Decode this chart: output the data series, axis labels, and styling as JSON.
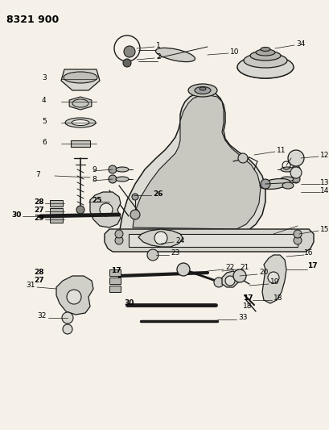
{
  "title": "8321 900",
  "bg_color": "#f5f0e8",
  "line_color": "#1a1a1a",
  "title_color": "#000000",
  "title_fontsize": 9,
  "label_fontsize": 6.5,
  "bold_labels": [
    17,
    25,
    26,
    28,
    27,
    29,
    30
  ],
  "fig_width": 4.1,
  "fig_height": 5.33,
  "dpi": 100
}
